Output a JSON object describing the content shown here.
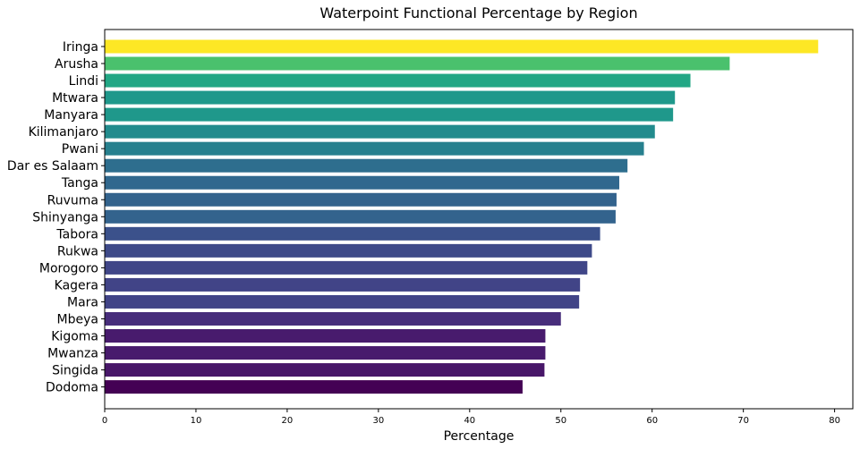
{
  "chart_data": {
    "type": "bar",
    "orientation": "horizontal",
    "title": "Waterpoint Functional Percentage by Region",
    "xlabel": "Percentage",
    "ylabel": "",
    "xlim": [
      0,
      82
    ],
    "xticks": [
      "0",
      "10",
      "20",
      "30",
      "40",
      "50",
      "60",
      "70",
      "80"
    ],
    "grid": false,
    "colormap": "viridis",
    "categories": [
      "Iringa",
      "Arusha",
      "Lindi",
      "Mtwara",
      "Manyara",
      "Kilimanjaro",
      "Pwani",
      "Dar es Salaam",
      "Tanga",
      "Ruvuma",
      "Shinyanga",
      "Tabora",
      "Rukwa",
      "Morogoro",
      "Kagera",
      "Mara",
      "Mbeya",
      "Kigoma",
      "Mwanza",
      "Singida",
      "Dodoma"
    ],
    "values": [
      78.2,
      68.5,
      64.2,
      62.5,
      62.3,
      60.3,
      59.1,
      57.3,
      56.4,
      56.1,
      56.0,
      54.3,
      53.4,
      52.9,
      52.1,
      52.0,
      50.0,
      48.3,
      48.3,
      48.2,
      45.8
    ],
    "colors": [
      "#fde725",
      "#4ac16d",
      "#22a785",
      "#1f988b",
      "#1f988b",
      "#228b8d",
      "#27808e",
      "#2e6e8e",
      "#31688e",
      "#33638d",
      "#33638d",
      "#3b518b",
      "#3e4a89",
      "#404688",
      "#414487",
      "#414487",
      "#472d7b",
      "#481b6d",
      "#481b6d",
      "#481769",
      "#440154"
    ]
  }
}
